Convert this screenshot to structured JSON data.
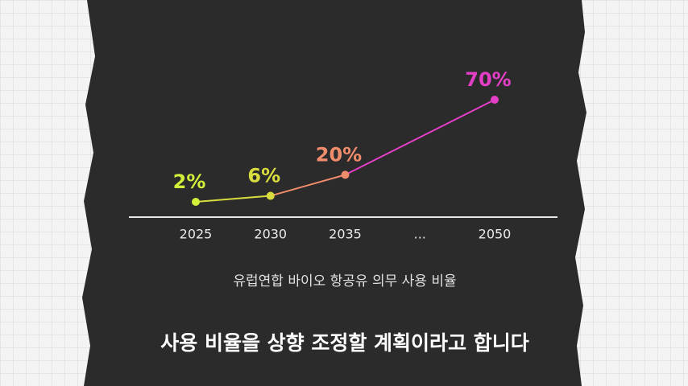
{
  "chart_data": {
    "type": "line",
    "categories": [
      "2025",
      "2030",
      "2035",
      "...",
      "2050"
    ],
    "values": [
      2,
      6,
      20,
      null,
      70
    ],
    "value_labels": [
      "2%",
      "6%",
      "20%",
      null,
      "70%"
    ],
    "point_colors": [
      "#d2ef3a",
      "#d9dc3e",
      "#ef8c6c",
      null,
      "#e33fc6"
    ],
    "caption": "유럽연합 바이오 항공유 의무 사용 비율",
    "subtitle": "사용 비율을 상향 조정할 계획이라고 합니다"
  }
}
